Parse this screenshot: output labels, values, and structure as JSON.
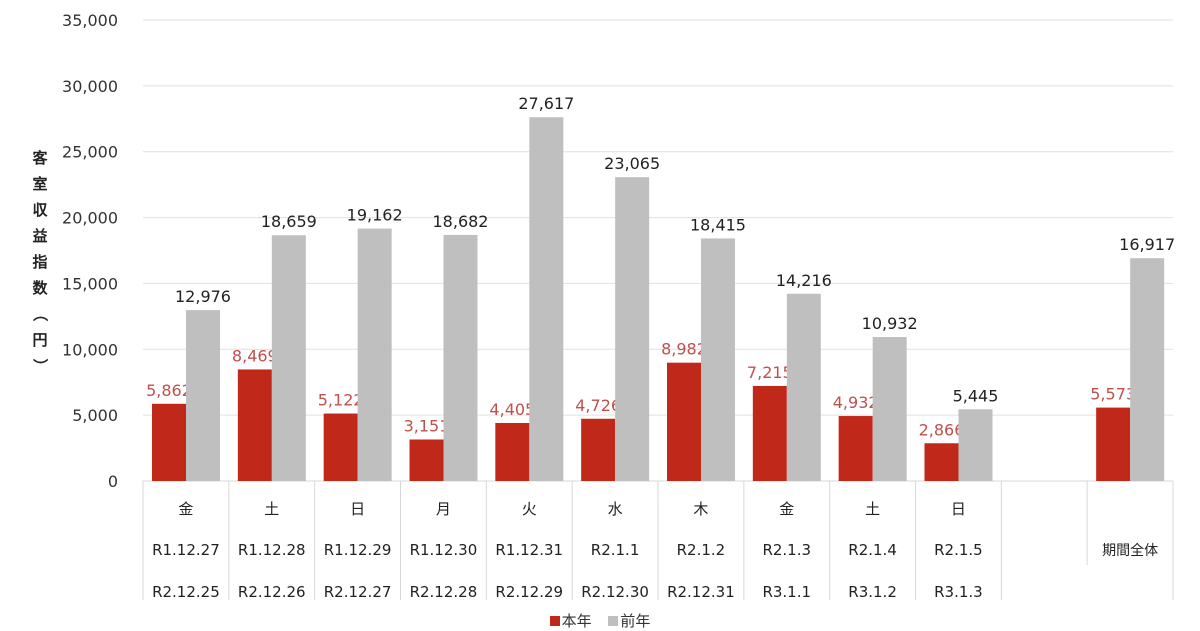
{
  "chart_data": {
    "type": "bar",
    "title": "",
    "ylabel": "客室収益指数（円）",
    "xlabel": "",
    "ylim": [
      0,
      35000
    ],
    "yticks": [
      0,
      5000,
      10000,
      15000,
      20000,
      25000,
      30000,
      35000
    ],
    "ytick_labels": [
      "0",
      "5,000",
      "10,000",
      "15,000",
      "20,000",
      "25,000",
      "30,000",
      "35,000"
    ],
    "grid": true,
    "legend_position": "bottom",
    "categories": [
      {
        "day": "金",
        "current_date": "R1.12.27",
        "previous_date": "R2.12.25"
      },
      {
        "day": "土",
        "current_date": "R1.12.28",
        "previous_date": "R2.12.26"
      },
      {
        "day": "日",
        "current_date": "R1.12.29",
        "previous_date": "R2.12.27"
      },
      {
        "day": "月",
        "current_date": "R1.12.30",
        "previous_date": "R2.12.28"
      },
      {
        "day": "火",
        "current_date": "R1.12.31",
        "previous_date": "R2.12.29"
      },
      {
        "day": "水",
        "current_date": "R2.1.1",
        "previous_date": "R2.12.30"
      },
      {
        "day": "木",
        "current_date": "R2.1.2",
        "previous_date": "R2.12.31"
      },
      {
        "day": "金",
        "current_date": "R2.1.3",
        "previous_date": "R3.1.1"
      },
      {
        "day": "土",
        "current_date": "R2.1.4",
        "previous_date": "R3.1.2"
      },
      {
        "day": "日",
        "current_date": "R2.1.5",
        "previous_date": "R3.1.3"
      },
      {
        "day": "",
        "current_date": "",
        "previous_date": ""
      },
      {
        "day": "",
        "current_date": "期間全体",
        "previous_date": "",
        "summary": true
      }
    ],
    "series": [
      {
        "name": "本年",
        "color": "#C0281A",
        "label_color": "#C0504D",
        "values": [
          5862,
          8469,
          5122,
          3151,
          4405,
          4726,
          8982,
          7215,
          4932,
          2866,
          null,
          5573
        ],
        "labels": [
          "5,862",
          "8,469",
          "5,122",
          "3,151",
          "4,405",
          "4,726",
          "8,982",
          "7,215",
          "4,932",
          "2,866",
          "",
          "5,573"
        ]
      },
      {
        "name": "前年",
        "color": "#BFBFBF",
        "label_color": "#222222",
        "values": [
          12976,
          18659,
          19162,
          18682,
          27617,
          23065,
          18415,
          14216,
          10932,
          5445,
          null,
          16917
        ],
        "labels": [
          "12,976",
          "18,659",
          "19,162",
          "18,682",
          "27,617",
          "23,065",
          "18,415",
          "14,216",
          "10,932",
          "5,445",
          "",
          "16,917"
        ]
      }
    ]
  }
}
